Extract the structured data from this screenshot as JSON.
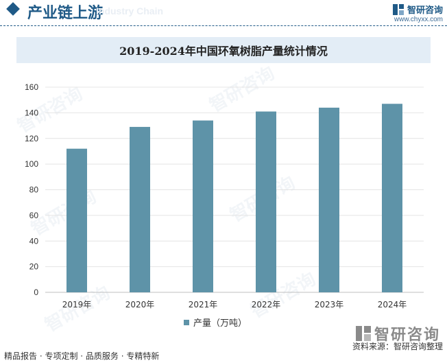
{
  "header": {
    "title": "产业链上游",
    "ghost_text": "Industry Chain",
    "brand_name": "智研咨询",
    "brand_url": "www.chyxx.com"
  },
  "chart_data": {
    "type": "bar",
    "title": "2019-2024年中国环氧树脂产量统计情况",
    "categories": [
      "2019年",
      "2020年",
      "2021年",
      "2022年",
      "2023年",
      "2024年"
    ],
    "series": [
      {
        "name": "产量（万吨）",
        "values": [
          112,
          129,
          134,
          141,
          144,
          147
        ]
      }
    ],
    "yticks": [
      0,
      20,
      40,
      60,
      80,
      100,
      120,
      140,
      160
    ],
    "ylim": [
      0,
      160
    ],
    "xlabel": "",
    "ylabel": "",
    "grid": true,
    "legend": "bottom",
    "bar_color": "#5e93a8"
  },
  "footer": {
    "left": "精品报告 · 专项定制 · 品质服务 · 专精特新",
    "brand_name": "智研咨询",
    "source": "资料来源：智研咨询整理"
  },
  "watermark": "智研咨询",
  "colors": {
    "brand": "#1f5a87",
    "title_bg": "#e3edf6",
    "bar": "#5e93a8"
  }
}
